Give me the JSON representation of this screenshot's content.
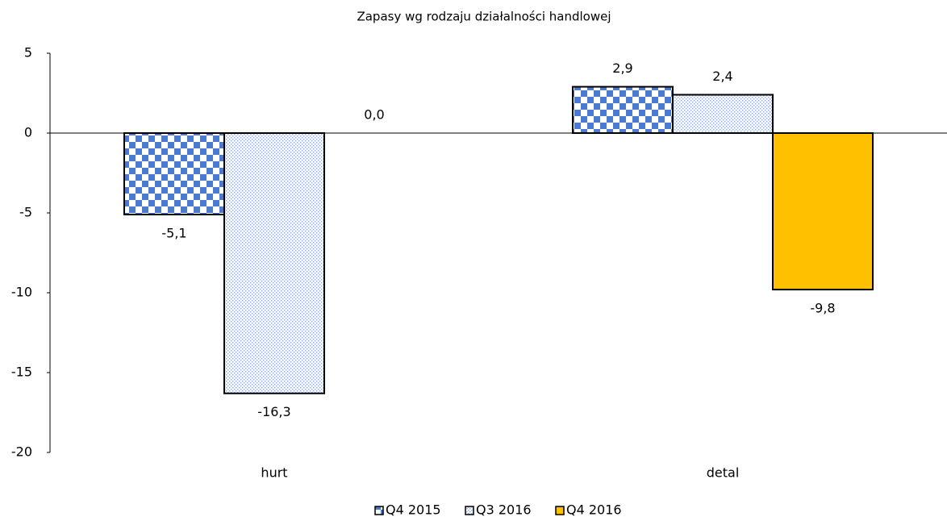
{
  "chart_data": {
    "type": "bar",
    "title": "Zapasy wg rodzaju działalności handlowej",
    "categories": [
      "hurt",
      "detal"
    ],
    "series": [
      {
        "name": "Q4 2015",
        "color": "#4a7bd0",
        "pattern": "checker",
        "values": [
          -5.1,
          2.9
        ],
        "value_labels": [
          "-5,1",
          "2,9"
        ]
      },
      {
        "name": "Q3 2016",
        "color": "#8fb0e0",
        "pattern": "dots",
        "values": [
          -16.3,
          2.4
        ],
        "value_labels": [
          "-16,3",
          "2,4"
        ]
      },
      {
        "name": "Q4 2016",
        "color": "#ffc000",
        "pattern": "solid",
        "values": [
          0.0,
          -9.8
        ],
        "value_labels": [
          "0,0",
          "-9,8"
        ]
      }
    ],
    "ylim": [
      -20,
      5
    ],
    "yticks": [
      -20,
      -15,
      -10,
      -5,
      0,
      5
    ],
    "grid": false,
    "legend": "bottom"
  }
}
